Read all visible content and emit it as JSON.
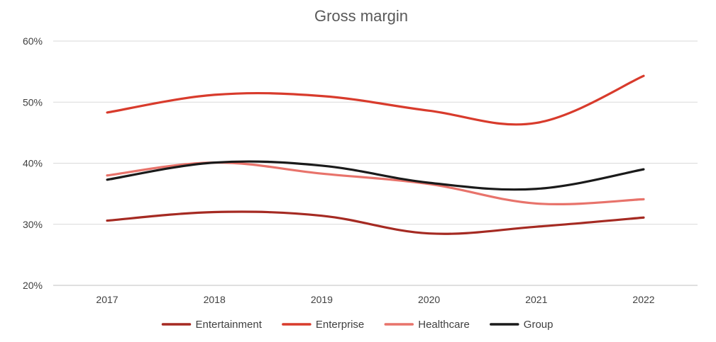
{
  "chart_data": {
    "type": "line",
    "title": "Gross margin",
    "xlabel": "",
    "ylabel": "",
    "categories": [
      "2017",
      "2018",
      "2019",
      "2020",
      "2021",
      "2022"
    ],
    "y_ticks": [
      "20%",
      "30%",
      "40%",
      "50%",
      "60%"
    ],
    "ylim": [
      20,
      60
    ],
    "grid": true,
    "smooth": true,
    "legend_position": "bottom",
    "series": [
      {
        "name": "Entertainment",
        "color": "#a52a22",
        "values": [
          30.6,
          32.0,
          31.4,
          28.5,
          29.6,
          31.1
        ]
      },
      {
        "name": "Enterprise",
        "color": "#d83b2c",
        "values": [
          48.3,
          51.2,
          51.0,
          48.6,
          46.6,
          54.3
        ]
      },
      {
        "name": "Healthcare",
        "color": "#e8736b",
        "values": [
          38.0,
          40.1,
          38.3,
          36.6,
          33.4,
          34.1
        ]
      },
      {
        "name": "Group",
        "color": "#1a1a1a",
        "values": [
          37.3,
          40.1,
          39.6,
          36.8,
          35.8,
          39.0
        ]
      }
    ]
  }
}
